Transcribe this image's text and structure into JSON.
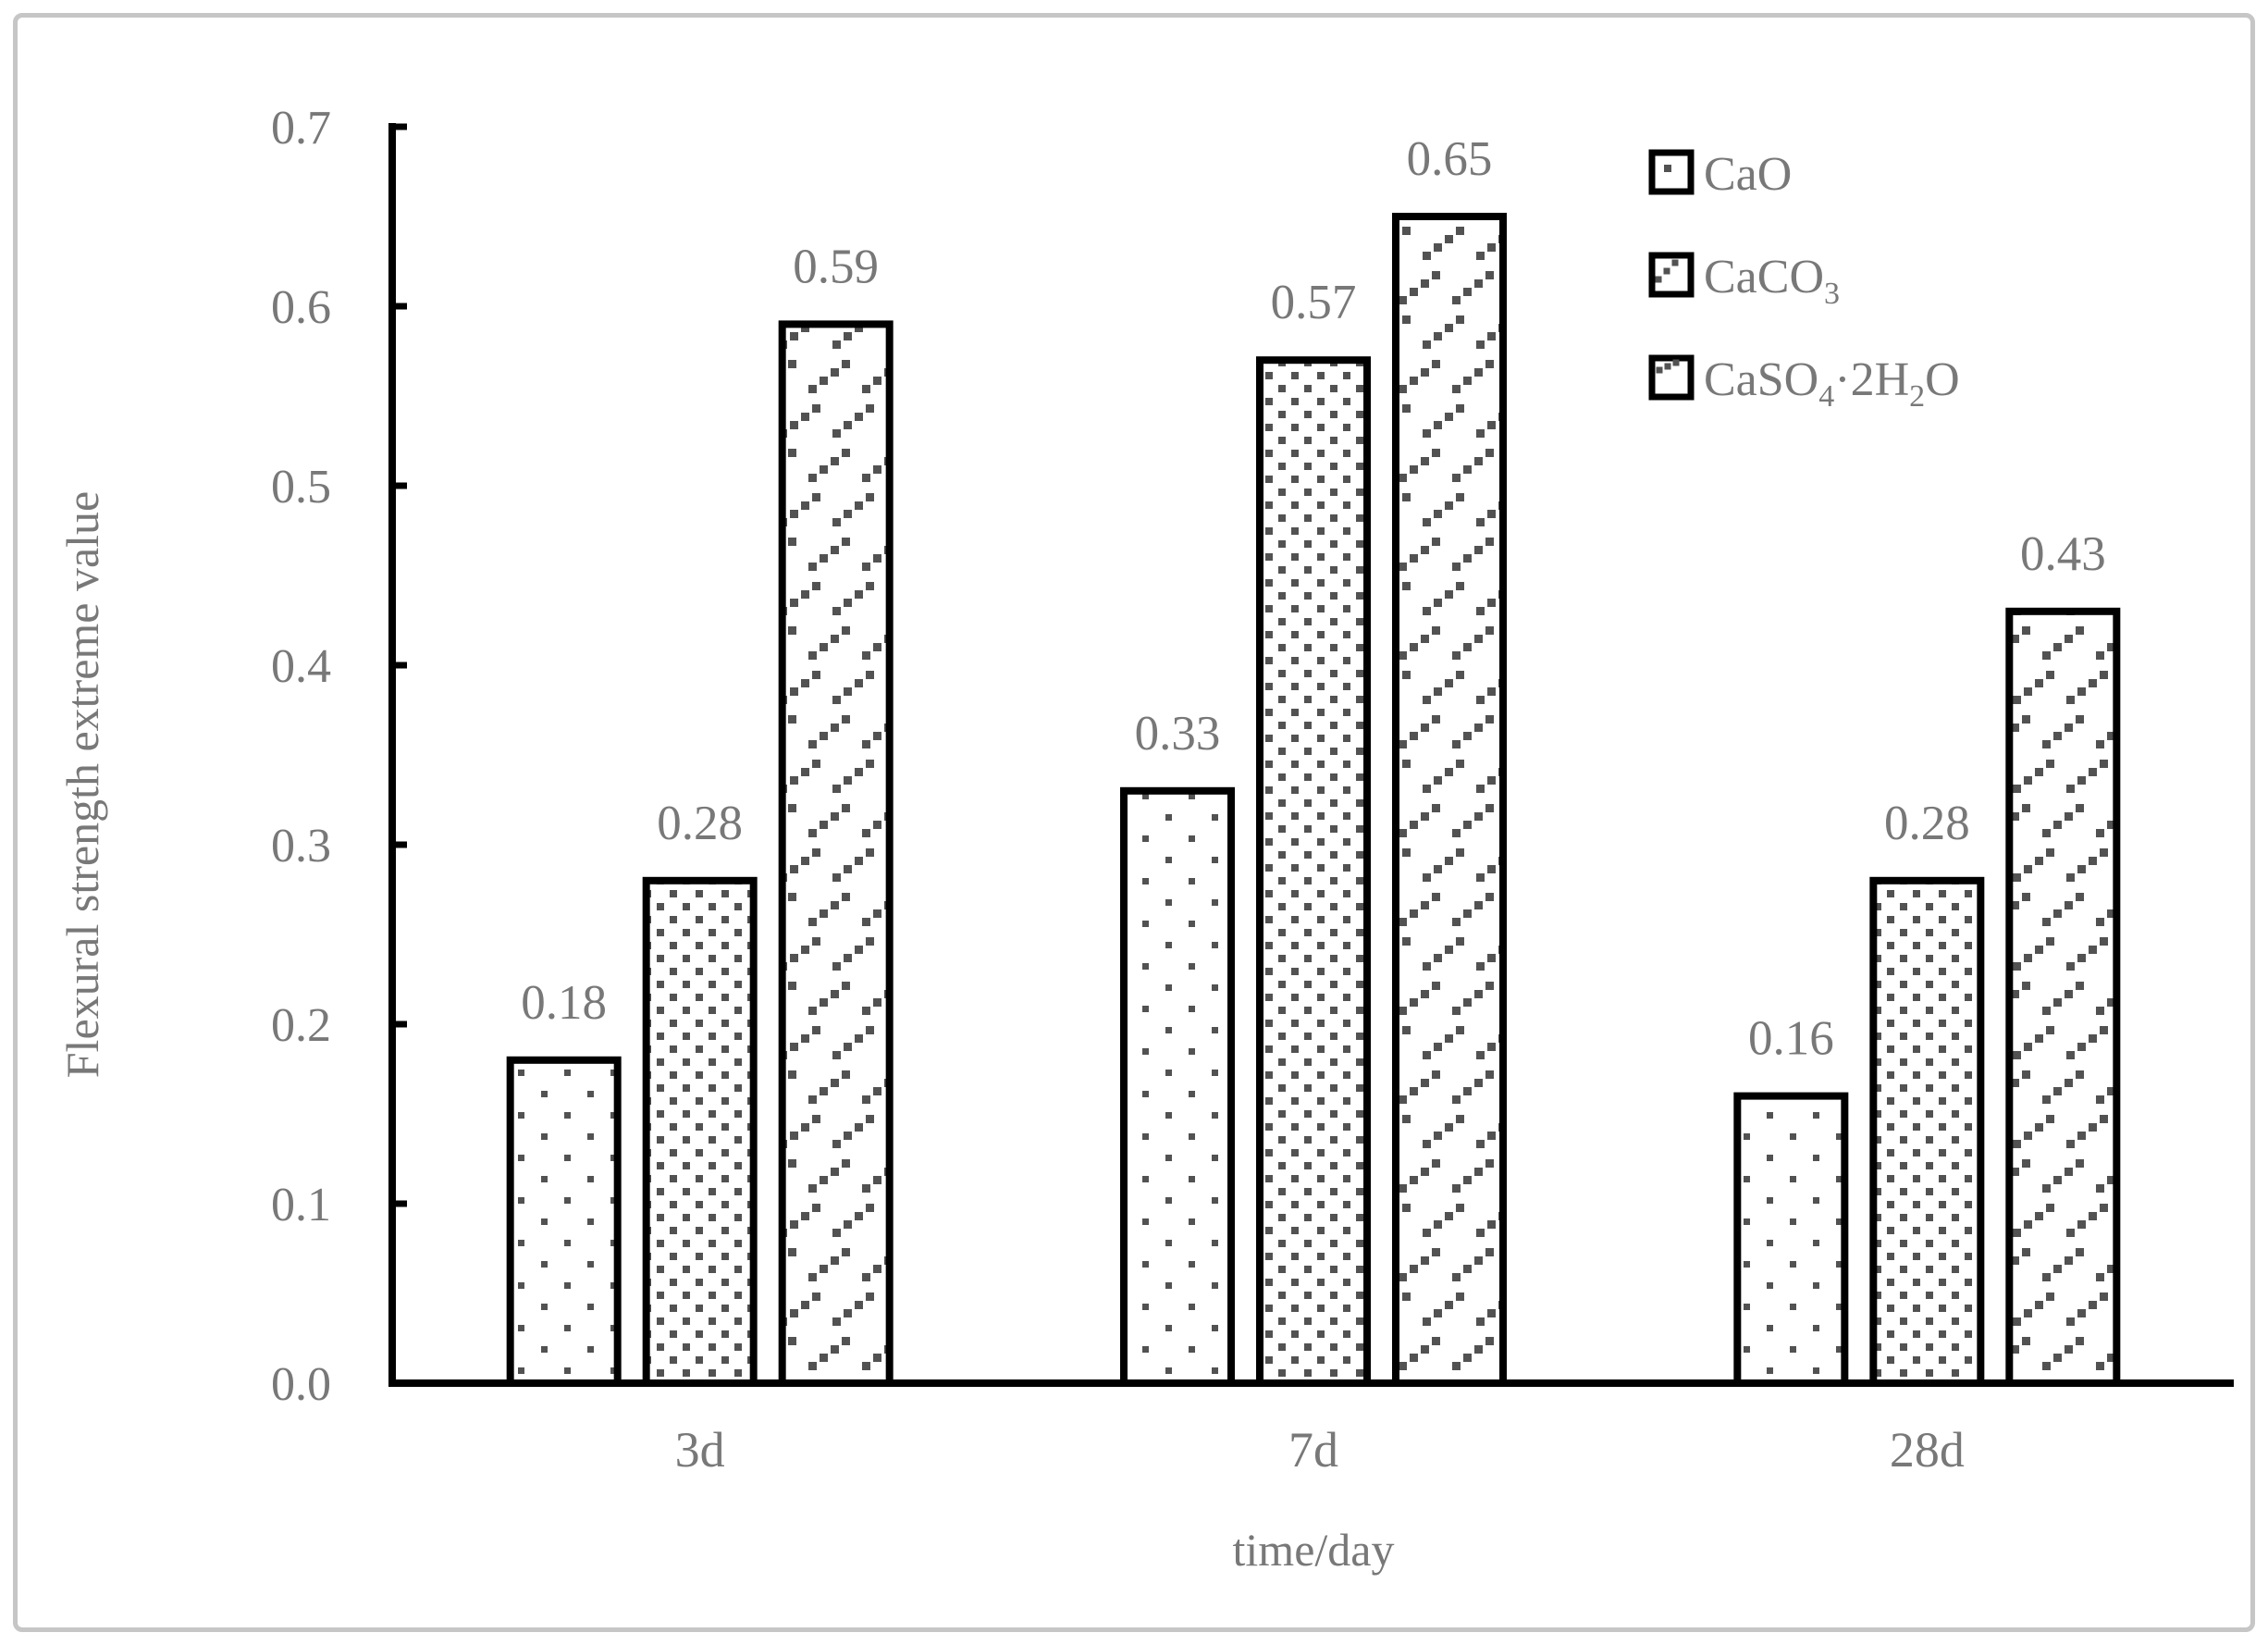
{
  "frame": {
    "background": "#ffffff",
    "border_color": "#c6c6c6"
  },
  "chart_data": {
    "type": "bar",
    "title": "",
    "xlabel": "time/day",
    "ylabel": "Flexural strength extreme value",
    "categories": [
      "3d",
      "7d",
      "28d"
    ],
    "series": [
      {
        "name": "CaO",
        "pattern": "dots",
        "values": [
          0.18,
          0.33,
          0.16
        ],
        "label_parts": [
          {
            "t": "CaO"
          }
        ]
      },
      {
        "name": "CaCO3",
        "pattern": "diagonal-dense",
        "values": [
          0.28,
          0.57,
          0.28
        ],
        "label_parts": [
          {
            "t": "CaCO"
          },
          {
            "t": "3",
            "sub": true
          }
        ]
      },
      {
        "name": "CaSO4·2H2O",
        "pattern": "diagonal-dashed",
        "values": [
          0.59,
          0.65,
          0.43
        ],
        "label_parts": [
          {
            "t": "CaSO"
          },
          {
            "t": "4",
            "sub": true
          },
          {
            "t": "·2H"
          },
          {
            "t": "2",
            "sub": true
          },
          {
            "t": "O"
          }
        ]
      }
    ],
    "data_labels": [
      [
        "0.18",
        "0.33",
        "0.16"
      ],
      [
        "0.28",
        "0.57",
        "0.28"
      ],
      [
        "0.59",
        "0.65",
        "0.43"
      ]
    ],
    "y_ticks": [
      "0.0",
      "0.1",
      "0.2",
      "0.3",
      "0.4",
      "0.5",
      "0.6",
      "0.7"
    ],
    "ylim": [
      0.0,
      0.7
    ],
    "y_step": 0.1,
    "grid": false,
    "legend_position": "upper-right",
    "colors": {
      "text": "#787878",
      "pattern_dot": "#525252",
      "axis": "#000000",
      "bar_border": "#000000",
      "bar_fill": "#ffffff"
    }
  }
}
